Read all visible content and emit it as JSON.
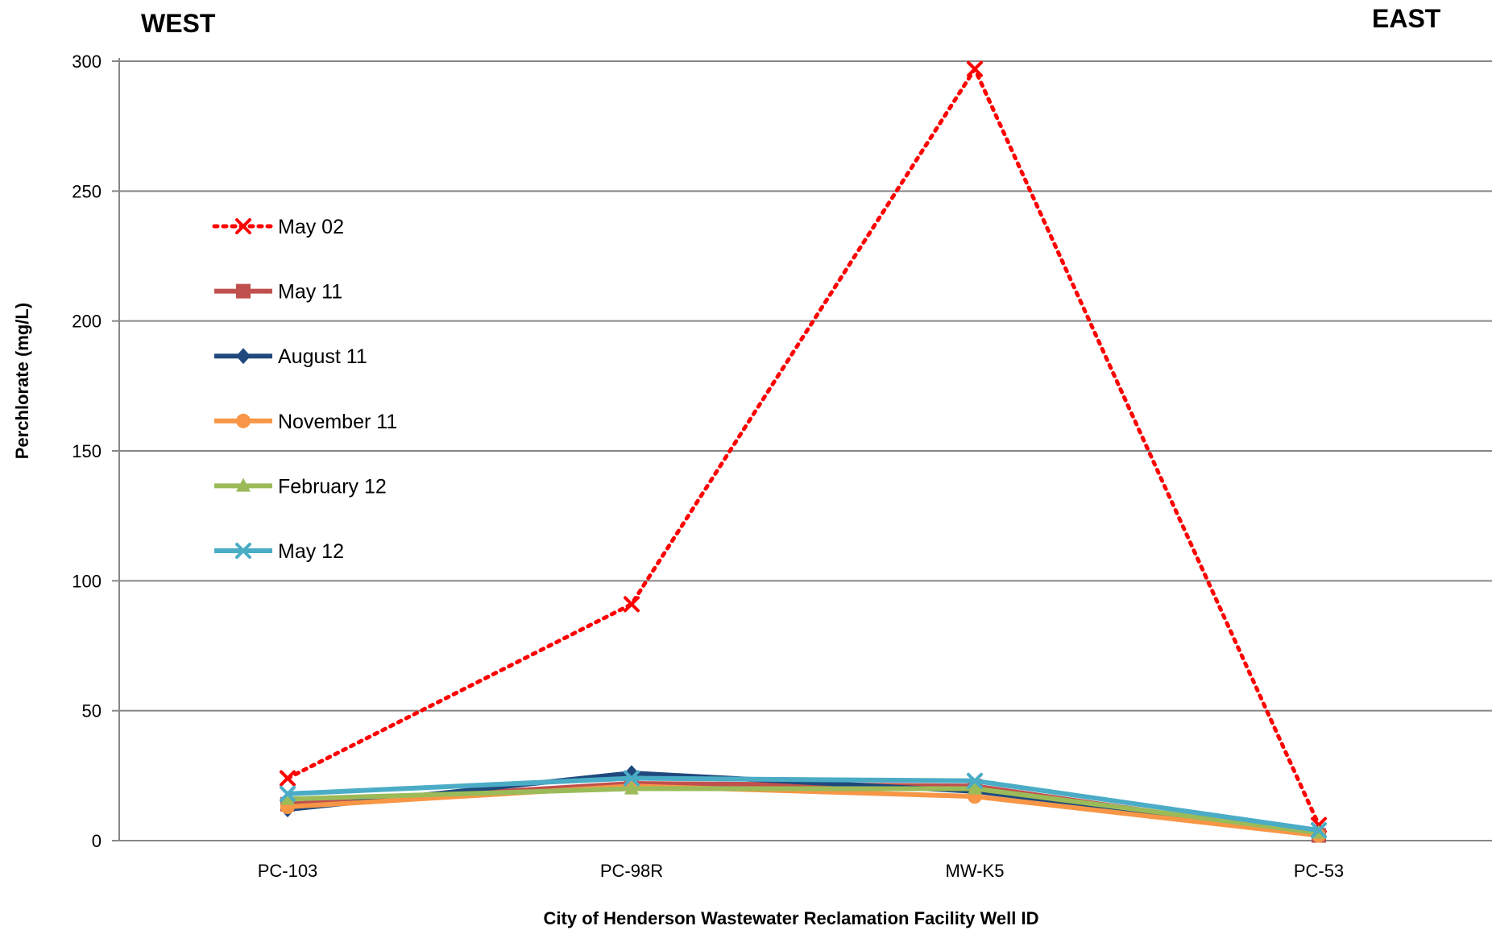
{
  "labels": {
    "west": "WEST",
    "east": "EAST"
  },
  "chart_data": {
    "type": "line",
    "title": "",
    "xlabel": "City of Henderson Wastewater Reclamation Facility Well ID",
    "ylabel": "Perchlorate (mg/L)",
    "ylim": [
      0,
      300
    ],
    "yticks": [
      0,
      50,
      100,
      150,
      200,
      250,
      300
    ],
    "grid": true,
    "legend_position": "left, inside plot area",
    "categories": [
      "PC-103",
      "PC-98R",
      "MW-K5",
      "PC-53"
    ],
    "series": [
      {
        "name": "May 02",
        "values": [
          24,
          91,
          297,
          6
        ],
        "color": "#ff0000",
        "marker": "x",
        "line_style": "dotted"
      },
      {
        "name": "May 11",
        "values": [
          14,
          22,
          21,
          2
        ],
        "color": "#c0504d",
        "marker": "square",
        "line_style": "solid"
      },
      {
        "name": "August 11",
        "values": [
          12,
          26,
          19,
          3
        ],
        "color": "#1f497d",
        "marker": "diamond",
        "line_style": "solid"
      },
      {
        "name": "November 11",
        "values": [
          13,
          21,
          17,
          2
        ],
        "color": "#f79646",
        "marker": "circle",
        "line_style": "solid"
      },
      {
        "name": "February 12",
        "values": [
          16,
          20,
          20,
          3
        ],
        "color": "#9bbb59",
        "marker": "triangle",
        "line_style": "solid"
      },
      {
        "name": "May 12",
        "values": [
          18,
          24,
          23,
          4
        ],
        "color": "#4bacc6",
        "marker": "x",
        "line_style": "solid"
      }
    ]
  }
}
